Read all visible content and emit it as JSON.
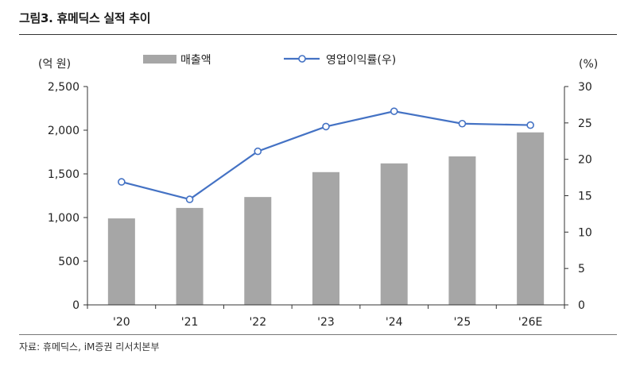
{
  "figure": {
    "title": "그림3.  휴메딕스 실적 추이",
    "source": "자료: 휴메딕스, iM증권 리서치본부"
  },
  "colors": {
    "bar": "#a6a6a6",
    "line": "#4472c4",
    "marker_fill": "#ffffff",
    "axis": "#333333"
  },
  "chart_data": {
    "type": "bar",
    "categories": [
      "'20",
      "'21",
      "'22",
      "'23",
      "'24",
      "'25",
      "'26E"
    ],
    "series": [
      {
        "name": "매출액",
        "type": "bar",
        "axis": "left",
        "values": [
          990,
          1110,
          1235,
          1520,
          1620,
          1700,
          1975
        ]
      },
      {
        "name": "영업이익률(우)",
        "type": "line",
        "axis": "right",
        "values": [
          16.9,
          14.5,
          21.1,
          24.5,
          26.6,
          24.9,
          24.7
        ]
      }
    ],
    "y_left": {
      "label": "(억 원)",
      "min": 0,
      "max": 2500,
      "ticks": [
        0,
        500,
        1000,
        1500,
        2000,
        2500
      ],
      "tick_labels": [
        "0",
        "500",
        "1,000",
        "1,500",
        "2,000",
        "2,500"
      ]
    },
    "y_right": {
      "label": "(%)",
      "min": 0,
      "max": 30,
      "ticks": [
        0,
        5,
        10,
        15,
        20,
        25,
        30
      ],
      "tick_labels": [
        "0",
        "5",
        "10",
        "15",
        "20",
        "25",
        "30"
      ]
    },
    "grid": false,
    "legend_position": "top-center"
  }
}
